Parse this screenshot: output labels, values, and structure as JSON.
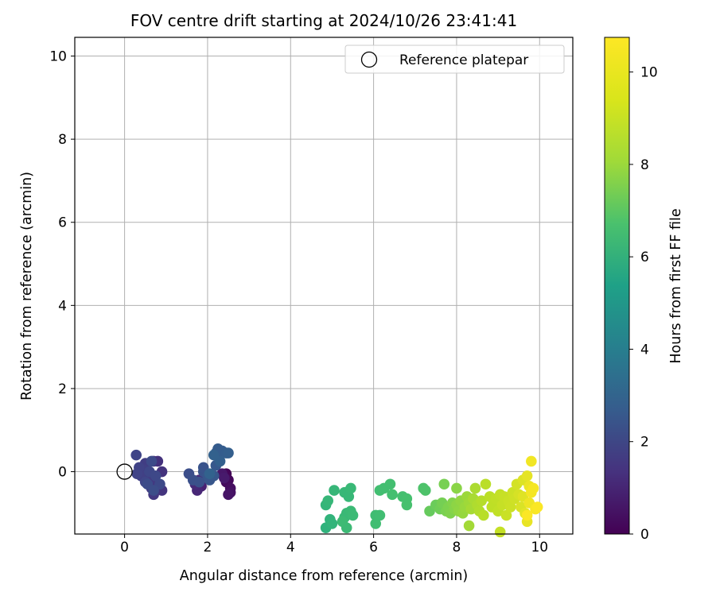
{
  "chart_data": {
    "type": "scatter",
    "title": "FOV centre drift starting at 2024/10/26 23:41:41",
    "xlabel": "Angular distance from reference (arcmin)",
    "ylabel": "Rotation from reference (arcmin)",
    "xlim": [
      -1.2,
      10.8
    ],
    "ylim": [
      -1.5,
      10.45
    ],
    "xticks": [
      0,
      2,
      4,
      6,
      8,
      10
    ],
    "yticks": [
      0,
      2,
      4,
      6,
      8,
      10
    ],
    "grid": true,
    "legend": {
      "position": "top-right",
      "entries": [
        "Reference platepar"
      ]
    },
    "reference_point": {
      "name": "Reference platepar",
      "x": 0,
      "y": 0,
      "marker": "open-circle"
    },
    "colorbar": {
      "label": "Hours from first FF file",
      "range": [
        0,
        10.75
      ],
      "ticks": [
        0,
        2,
        4,
        6,
        8,
        10
      ],
      "colormap": "viridis"
    },
    "series": [
      {
        "marker": "filled-circle",
        "points": [
          {
            "x": 2.45,
            "y": -0.05,
            "t": 0.1
          },
          {
            "x": 2.5,
            "y": -0.2,
            "t": 0.2
          },
          {
            "x": 2.45,
            "y": -0.25,
            "t": 0.3
          },
          {
            "x": 2.55,
            "y": -0.4,
            "t": 0.4
          },
          {
            "x": 2.55,
            "y": -0.5,
            "t": 0.5
          },
          {
            "x": 2.5,
            "y": -0.55,
            "t": 0.6
          },
          {
            "x": 2.35,
            "y": -0.05,
            "t": 0.7
          },
          {
            "x": 2.4,
            "y": -0.15,
            "t": 0.8
          },
          {
            "x": 1.85,
            "y": -0.35,
            "t": 1.0
          },
          {
            "x": 1.75,
            "y": -0.45,
            "t": 1.2
          },
          {
            "x": 1.7,
            "y": -0.3,
            "t": 1.3
          },
          {
            "x": 1.8,
            "y": -0.2,
            "t": 1.4
          },
          {
            "x": 0.7,
            "y": 0.25,
            "t": 1.5
          },
          {
            "x": 0.8,
            "y": 0.25,
            "t": 1.55
          },
          {
            "x": 0.9,
            "y": 0.0,
            "t": 1.6
          },
          {
            "x": 0.9,
            "y": -0.45,
            "t": 1.65
          },
          {
            "x": 0.75,
            "y": -0.3,
            "t": 1.7
          },
          {
            "x": 0.7,
            "y": -0.55,
            "t": 1.75
          },
          {
            "x": 0.65,
            "y": -0.4,
            "t": 1.8
          },
          {
            "x": 0.6,
            "y": -0.2,
            "t": 1.85
          },
          {
            "x": 0.55,
            "y": -0.05,
            "t": 1.9
          },
          {
            "x": 0.5,
            "y": 0.2,
            "t": 1.95
          },
          {
            "x": 0.45,
            "y": 0.05,
            "t": 2.0
          },
          {
            "x": 0.4,
            "y": -0.1,
            "t": 2.05
          },
          {
            "x": 0.35,
            "y": 0.1,
            "t": 2.1
          },
          {
            "x": 0.3,
            "y": -0.05,
            "t": 2.15
          },
          {
            "x": 0.28,
            "y": 0.4,
            "t": 2.2
          },
          {
            "x": 0.5,
            "y": -0.25,
            "t": 2.25
          },
          {
            "x": 0.6,
            "y": 0.0,
            "t": 2.3
          },
          {
            "x": 0.75,
            "y": -0.1,
            "t": 2.35
          },
          {
            "x": 0.85,
            "y": -0.3,
            "t": 2.4
          },
          {
            "x": 0.65,
            "y": 0.25,
            "t": 2.45
          },
          {
            "x": 0.55,
            "y": -0.3,
            "t": 2.5
          },
          {
            "x": 0.7,
            "y": -0.45,
            "t": 2.55
          },
          {
            "x": 1.55,
            "y": -0.05,
            "t": 2.6
          },
          {
            "x": 1.65,
            "y": -0.2,
            "t": 2.65
          },
          {
            "x": 1.8,
            "y": -0.25,
            "t": 2.7
          },
          {
            "x": 1.9,
            "y": 0.0,
            "t": 2.75
          },
          {
            "x": 1.9,
            "y": 0.1,
            "t": 2.8
          },
          {
            "x": 2.0,
            "y": -0.1,
            "t": 2.85
          },
          {
            "x": 2.05,
            "y": -0.2,
            "t": 2.9
          },
          {
            "x": 2.15,
            "y": -0.1,
            "t": 2.95
          },
          {
            "x": 2.2,
            "y": 0.15,
            "t": 3.0
          },
          {
            "x": 2.2,
            "y": 0.45,
            "t": 3.05
          },
          {
            "x": 2.25,
            "y": 0.55,
            "t": 3.1
          },
          {
            "x": 2.35,
            "y": 0.5,
            "t": 3.15
          },
          {
            "x": 2.45,
            "y": 0.45,
            "t": 3.2
          },
          {
            "x": 2.5,
            "y": 0.45,
            "t": 3.25
          },
          {
            "x": 2.3,
            "y": 0.25,
            "t": 3.3
          },
          {
            "x": 2.15,
            "y": 0.4,
            "t": 3.35
          },
          {
            "x": 2.05,
            "y": -0.05,
            "t": 3.4
          },
          {
            "x": 4.85,
            "y": -1.35,
            "t": 6.9
          },
          {
            "x": 4.95,
            "y": -1.15,
            "t": 6.95
          },
          {
            "x": 5.0,
            "y": -1.25,
            "t": 7.0
          },
          {
            "x": 4.85,
            "y": -0.8,
            "t": 7.05
          },
          {
            "x": 4.9,
            "y": -0.7,
            "t": 7.1
          },
          {
            "x": 5.05,
            "y": -0.45,
            "t": 7.12
          },
          {
            "x": 5.3,
            "y": -0.5,
            "t": 7.14
          },
          {
            "x": 5.4,
            "y": -0.6,
            "t": 7.16
          },
          {
            "x": 5.45,
            "y": -0.4,
            "t": 7.18
          },
          {
            "x": 5.3,
            "y": -1.1,
            "t": 7.2
          },
          {
            "x": 5.35,
            "y": -1.0,
            "t": 7.22
          },
          {
            "x": 5.45,
            "y": -0.95,
            "t": 7.24
          },
          {
            "x": 5.35,
            "y": -1.35,
            "t": 7.26
          },
          {
            "x": 5.5,
            "y": -1.05,
            "t": 7.28
          },
          {
            "x": 5.25,
            "y": -1.2,
            "t": 7.3
          },
          {
            "x": 6.05,
            "y": -1.05,
            "t": 7.4
          },
          {
            "x": 6.05,
            "y": -1.25,
            "t": 7.42
          },
          {
            "x": 6.15,
            "y": -1.05,
            "t": 7.44
          },
          {
            "x": 6.15,
            "y": -0.45,
            "t": 7.46
          },
          {
            "x": 6.25,
            "y": -0.4,
            "t": 7.48
          },
          {
            "x": 6.4,
            "y": -0.3,
            "t": 7.5
          },
          {
            "x": 6.45,
            "y": -0.55,
            "t": 7.52
          },
          {
            "x": 6.7,
            "y": -0.6,
            "t": 7.54
          },
          {
            "x": 6.8,
            "y": -0.65,
            "t": 7.56
          },
          {
            "x": 6.8,
            "y": -0.8,
            "t": 7.58
          },
          {
            "x": 7.2,
            "y": -0.4,
            "t": 7.7
          },
          {
            "x": 7.25,
            "y": -0.45,
            "t": 7.72
          },
          {
            "x": 7.35,
            "y": -0.95,
            "t": 8.2
          },
          {
            "x": 7.5,
            "y": -0.8,
            "t": 8.3
          },
          {
            "x": 7.6,
            "y": -0.9,
            "t": 8.4
          },
          {
            "x": 7.65,
            "y": -0.75,
            "t": 8.5
          },
          {
            "x": 7.7,
            "y": -0.3,
            "t": 8.55
          },
          {
            "x": 7.75,
            "y": -0.95,
            "t": 8.6
          },
          {
            "x": 7.8,
            "y": -0.85,
            "t": 8.65
          },
          {
            "x": 7.85,
            "y": -1.0,
            "t": 8.7
          },
          {
            "x": 7.9,
            "y": -0.75,
            "t": 8.75
          },
          {
            "x": 7.95,
            "y": -0.9,
            "t": 8.8
          },
          {
            "x": 8.0,
            "y": -0.4,
            "t": 8.85
          },
          {
            "x": 8.0,
            "y": -0.8,
            "t": 8.9
          },
          {
            "x": 8.05,
            "y": -0.95,
            "t": 8.95
          },
          {
            "x": 8.1,
            "y": -0.7,
            "t": 9.0
          },
          {
            "x": 8.15,
            "y": -1.0,
            "t": 9.05
          },
          {
            "x": 8.2,
            "y": -0.85,
            "t": 9.1
          },
          {
            "x": 8.25,
            "y": -0.6,
            "t": 9.15
          },
          {
            "x": 8.3,
            "y": -0.75,
            "t": 9.2
          },
          {
            "x": 8.3,
            "y": -1.3,
            "t": 9.25
          },
          {
            "x": 8.35,
            "y": -0.9,
            "t": 9.3
          },
          {
            "x": 8.4,
            "y": -0.65,
            "t": 9.35
          },
          {
            "x": 8.45,
            "y": -0.4,
            "t": 9.4
          },
          {
            "x": 8.5,
            "y": -0.8,
            "t": 9.45
          },
          {
            "x": 8.55,
            "y": -0.95,
            "t": 9.5
          },
          {
            "x": 8.6,
            "y": -0.7,
            "t": 9.55
          },
          {
            "x": 8.65,
            "y": -1.05,
            "t": 9.6
          },
          {
            "x": 8.7,
            "y": -0.3,
            "t": 9.62
          },
          {
            "x": 8.8,
            "y": -0.6,
            "t": 9.65
          },
          {
            "x": 8.85,
            "y": -0.85,
            "t": 9.68
          },
          {
            "x": 8.9,
            "y": -0.75,
            "t": 9.7
          },
          {
            "x": 8.95,
            "y": -0.65,
            "t": 9.72
          },
          {
            "x": 9.0,
            "y": -0.95,
            "t": 9.75
          },
          {
            "x": 9.05,
            "y": -0.55,
            "t": 9.78
          },
          {
            "x": 9.05,
            "y": -1.45,
            "t": 9.8
          },
          {
            "x": 9.1,
            "y": -0.8,
            "t": 9.82
          },
          {
            "x": 9.15,
            "y": -0.6,
            "t": 9.85
          },
          {
            "x": 9.2,
            "y": -1.05,
            "t": 9.88
          },
          {
            "x": 9.25,
            "y": -0.7,
            "t": 9.9
          },
          {
            "x": 9.3,
            "y": -0.85,
            "t": 9.92
          },
          {
            "x": 9.35,
            "y": -0.5,
            "t": 9.95
          },
          {
            "x": 9.4,
            "y": -0.65,
            "t": 9.98
          },
          {
            "x": 9.45,
            "y": -0.3,
            "t": 10.05
          },
          {
            "x": 9.5,
            "y": -0.55,
            "t": 10.1
          },
          {
            "x": 9.55,
            "y": -0.85,
            "t": 10.15
          },
          {
            "x": 9.6,
            "y": -0.2,
            "t": 10.2
          },
          {
            "x": 9.6,
            "y": -0.6,
            "t": 10.25
          },
          {
            "x": 9.65,
            "y": -1.0,
            "t": 10.3
          },
          {
            "x": 9.7,
            "y": -0.1,
            "t": 10.35
          },
          {
            "x": 9.7,
            "y": -1.2,
            "t": 10.4
          },
          {
            "x": 9.75,
            "y": -0.35,
            "t": 10.45
          },
          {
            "x": 9.75,
            "y": -0.75,
            "t": 10.5
          },
          {
            "x": 9.8,
            "y": 0.25,
            "t": 10.55
          },
          {
            "x": 9.8,
            "y": -0.5,
            "t": 10.6
          },
          {
            "x": 9.85,
            "y": -0.4,
            "t": 10.62
          },
          {
            "x": 9.9,
            "y": -0.9,
            "t": 10.65
          },
          {
            "x": 9.95,
            "y": -0.85,
            "t": 10.7
          },
          {
            "x": 9.7,
            "y": -1.05,
            "t": 10.72
          }
        ]
      }
    ]
  }
}
